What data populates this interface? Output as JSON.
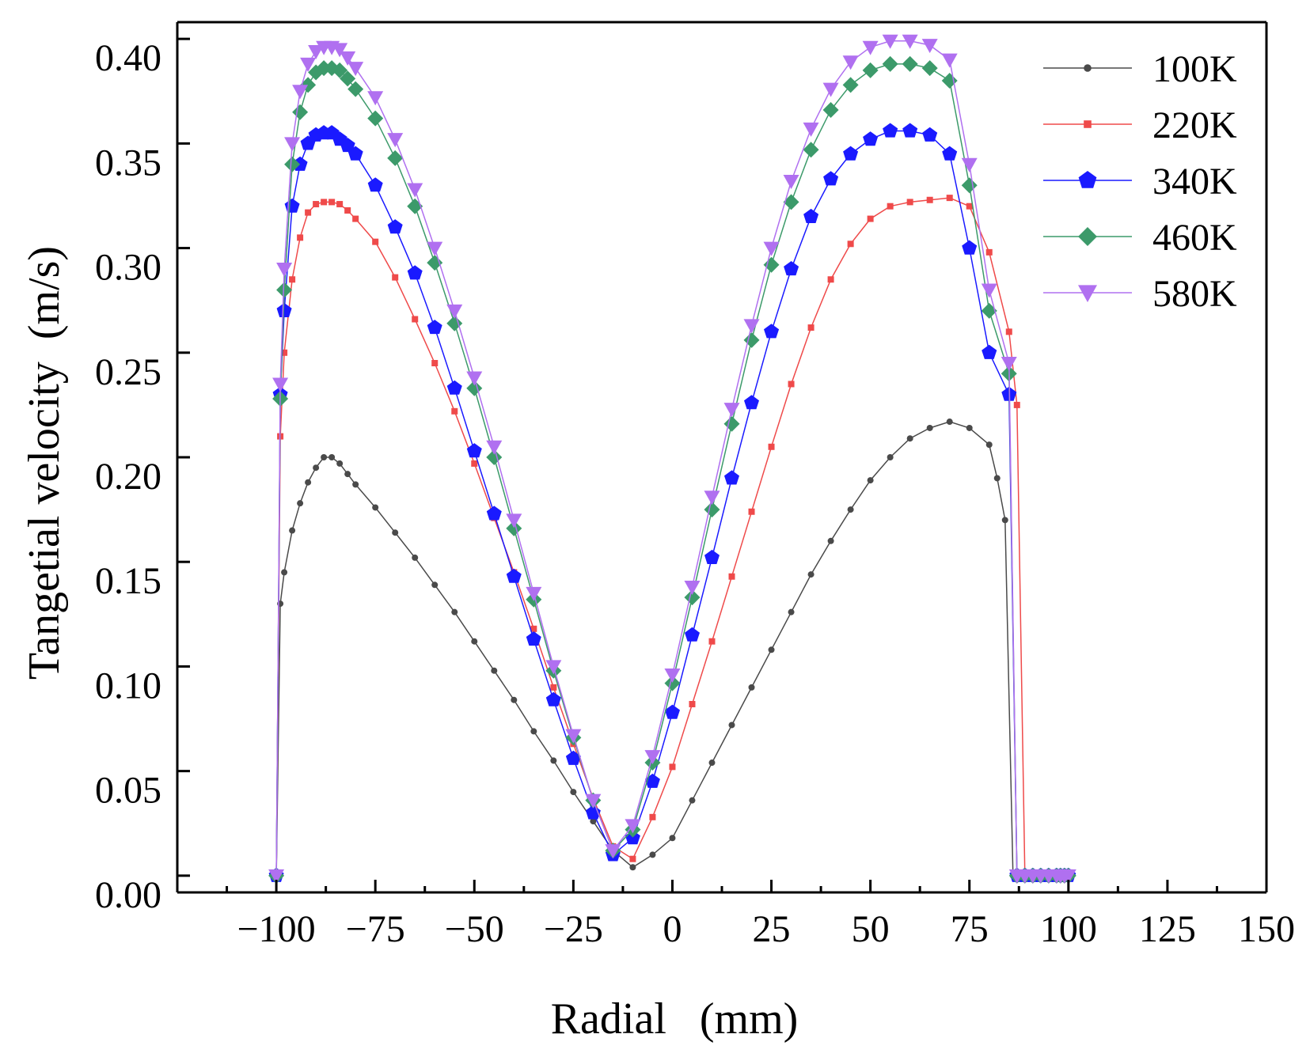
{
  "chart_data": {
    "type": "line",
    "title": "",
    "xlabel": "Radial   (mm)",
    "ylabel": "Tangetial velocity  (m/s)",
    "xlim": [
      -125,
      150
    ],
    "ylim": [
      -0.008,
      0.408
    ],
    "x_ticks": [
      -100,
      -75,
      -50,
      -25,
      0,
      25,
      50,
      75,
      100,
      125,
      150
    ],
    "x_tick_labels": [
      "−100",
      "−75",
      "−50",
      "−25",
      "0",
      "25",
      "50",
      "75",
      "100",
      "125",
      "150"
    ],
    "y_ticks": [
      0.0,
      0.05,
      0.1,
      0.15,
      0.2,
      0.25,
      0.3,
      0.35,
      0.4
    ],
    "y_tick_labels": [
      "0.00",
      "0.05",
      "0.10",
      "0.15",
      "0.20",
      "0.25",
      "0.30",
      "0.35",
      "0.40"
    ],
    "legend_position": "top-right",
    "series": [
      {
        "name": "100K",
        "color": "#4a4a4a",
        "marker": "circle",
        "x": [
          -100,
          -99,
          -98,
          -96,
          -94,
          -92,
          -90,
          -88,
          -86,
          -84,
          -82,
          -80,
          -75,
          -70,
          -65,
          -60,
          -55,
          -50,
          -45,
          -40,
          -35,
          -30,
          -25,
          -20,
          -15,
          -10,
          -5,
          0,
          5,
          10,
          15,
          20,
          25,
          30,
          35,
          40,
          45,
          50,
          55,
          60,
          65,
          70,
          75,
          80,
          82,
          84,
          86,
          88,
          90,
          92,
          94,
          96,
          98,
          99,
          100
        ],
        "y": [
          0.0,
          0.13,
          0.145,
          0.165,
          0.178,
          0.188,
          0.195,
          0.2,
          0.2,
          0.197,
          0.192,
          0.187,
          0.176,
          0.164,
          0.152,
          0.139,
          0.126,
          0.112,
          0.098,
          0.084,
          0.069,
          0.055,
          0.04,
          0.026,
          0.012,
          0.004,
          0.01,
          0.018,
          0.036,
          0.054,
          0.072,
          0.09,
          0.108,
          0.126,
          0.144,
          0.16,
          0.175,
          0.189,
          0.2,
          0.209,
          0.214,
          0.217,
          0.214,
          0.206,
          0.19,
          0.17,
          0.0,
          0.0,
          0.0,
          0.0,
          0.0,
          0.0,
          0.0,
          0.0,
          0.0
        ]
      },
      {
        "name": "220K",
        "color": "#ef4a4a",
        "marker": "square",
        "x": [
          -100,
          -99,
          -98,
          -96,
          -94,
          -92,
          -90,
          -88,
          -86,
          -84,
          -82,
          -80,
          -75,
          -70,
          -65,
          -60,
          -55,
          -50,
          -45,
          -40,
          -35,
          -30,
          -25,
          -20,
          -15,
          -10,
          -5,
          0,
          5,
          10,
          15,
          20,
          25,
          30,
          35,
          40,
          45,
          50,
          55,
          60,
          65,
          70,
          75,
          80,
          85,
          87,
          89,
          91,
          93,
          95,
          97,
          98,
          99,
          100
        ],
        "y": [
          0.0,
          0.21,
          0.25,
          0.285,
          0.305,
          0.317,
          0.321,
          0.322,
          0.322,
          0.321,
          0.318,
          0.314,
          0.303,
          0.286,
          0.266,
          0.245,
          0.222,
          0.197,
          0.171,
          0.145,
          0.118,
          0.09,
          0.063,
          0.037,
          0.014,
          0.008,
          0.028,
          0.052,
          0.082,
          0.112,
          0.143,
          0.174,
          0.205,
          0.235,
          0.262,
          0.285,
          0.302,
          0.314,
          0.32,
          0.322,
          0.323,
          0.324,
          0.32,
          0.298,
          0.26,
          0.225,
          0.0,
          0.0,
          0.0,
          0.0,
          0.0,
          0.0,
          0.0,
          0.0
        ]
      },
      {
        "name": "340K",
        "color": "#1a1aff",
        "marker": "pentagon",
        "x": [
          -100,
          -99,
          -98,
          -96,
          -94,
          -92,
          -90,
          -88,
          -86,
          -84,
          -82,
          -80,
          -75,
          -70,
          -65,
          -60,
          -55,
          -50,
          -45,
          -40,
          -35,
          -30,
          -25,
          -20,
          -15,
          -10,
          -5,
          0,
          5,
          10,
          15,
          20,
          25,
          30,
          35,
          40,
          45,
          50,
          55,
          60,
          65,
          70,
          75,
          80,
          85,
          87,
          89,
          91,
          93,
          95,
          97,
          98,
          99,
          100
        ],
        "y": [
          0.0,
          0.23,
          0.27,
          0.32,
          0.34,
          0.35,
          0.354,
          0.355,
          0.355,
          0.352,
          0.349,
          0.345,
          0.33,
          0.31,
          0.288,
          0.262,
          0.233,
          0.203,
          0.173,
          0.143,
          0.113,
          0.084,
          0.056,
          0.03,
          0.01,
          0.018,
          0.045,
          0.078,
          0.115,
          0.152,
          0.19,
          0.226,
          0.26,
          0.29,
          0.315,
          0.333,
          0.345,
          0.352,
          0.356,
          0.356,
          0.354,
          0.345,
          0.3,
          0.25,
          0.23,
          0.0,
          0.0,
          0.0,
          0.0,
          0.0,
          0.0,
          0.0,
          0.0,
          0.0
        ]
      },
      {
        "name": "460K",
        "color": "#3c9a6a",
        "marker": "diamond",
        "x": [
          -100,
          -99,
          -98,
          -96,
          -94,
          -92,
          -90,
          -88,
          -86,
          -84,
          -82,
          -80,
          -75,
          -70,
          -65,
          -60,
          -55,
          -50,
          -45,
          -40,
          -35,
          -30,
          -25,
          -20,
          -15,
          -10,
          -5,
          0,
          5,
          10,
          15,
          20,
          25,
          30,
          35,
          40,
          45,
          50,
          55,
          60,
          65,
          70,
          75,
          80,
          85,
          87,
          89,
          91,
          93,
          95,
          97,
          98,
          99,
          100
        ],
        "y": [
          0.0,
          0.228,
          0.28,
          0.34,
          0.365,
          0.378,
          0.384,
          0.386,
          0.386,
          0.385,
          0.381,
          0.376,
          0.362,
          0.343,
          0.32,
          0.293,
          0.264,
          0.233,
          0.2,
          0.166,
          0.132,
          0.098,
          0.066,
          0.036,
          0.012,
          0.022,
          0.054,
          0.092,
          0.133,
          0.175,
          0.216,
          0.256,
          0.292,
          0.322,
          0.347,
          0.366,
          0.378,
          0.385,
          0.388,
          0.388,
          0.386,
          0.38,
          0.33,
          0.27,
          0.24,
          0.0,
          0.0,
          0.0,
          0.0,
          0.0,
          0.0,
          0.0,
          0.0,
          0.0
        ]
      },
      {
        "name": "580K",
        "color": "#b070f0",
        "marker": "triangle-down",
        "x": [
          -100,
          -99,
          -98,
          -96,
          -94,
          -92,
          -90,
          -88,
          -86,
          -84,
          -82,
          -80,
          -75,
          -70,
          -65,
          -60,
          -55,
          -50,
          -45,
          -40,
          -35,
          -30,
          -25,
          -20,
          -15,
          -10,
          -5,
          0,
          5,
          10,
          15,
          20,
          25,
          30,
          35,
          40,
          45,
          50,
          55,
          60,
          65,
          70,
          75,
          80,
          85,
          87,
          89,
          91,
          93,
          95,
          97,
          98,
          99,
          100
        ],
        "y": [
          0.0,
          0.235,
          0.29,
          0.35,
          0.375,
          0.388,
          0.394,
          0.396,
          0.396,
          0.395,
          0.391,
          0.386,
          0.372,
          0.352,
          0.328,
          0.3,
          0.27,
          0.238,
          0.205,
          0.17,
          0.135,
          0.1,
          0.067,
          0.036,
          0.012,
          0.024,
          0.057,
          0.096,
          0.138,
          0.181,
          0.223,
          0.263,
          0.3,
          0.332,
          0.357,
          0.376,
          0.389,
          0.396,
          0.399,
          0.399,
          0.397,
          0.39,
          0.34,
          0.28,
          0.245,
          0.0,
          0.0,
          0.0,
          0.0,
          0.0,
          0.0,
          0.0,
          0.0,
          0.0
        ]
      }
    ]
  }
}
